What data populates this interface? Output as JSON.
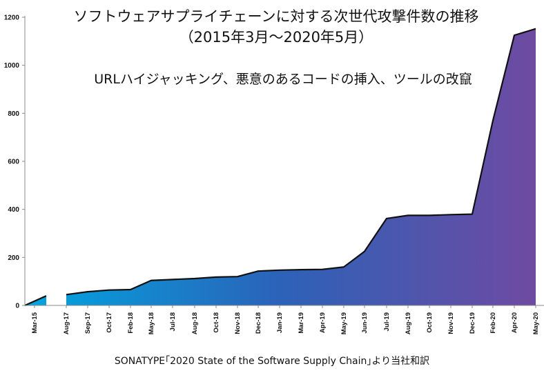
{
  "chart_data": {
    "type": "area",
    "title": "ソフトウェアサプライチェーンに対する次世代攻撃件数の推移",
    "subtitle": "（2015年3月～2020年5月）",
    "annotation": "URLハイジャッキング、悪意のあるコードの挿入、ツールの改竄",
    "source": "SONATYPE｢2020 State of the Software Supply Chain｣より当社和訳",
    "xlabel": "",
    "ylabel": "",
    "ylim": [
      0,
      1200
    ],
    "yticks": [
      0,
      200,
      400,
      600,
      800,
      1000,
      1200
    ],
    "grid": false,
    "colors": {
      "start": "#00a6e0",
      "mid": "#2c62b8",
      "end": "#6f4aa2",
      "line": "#111111"
    },
    "categories": [
      "Mar-15",
      "Aug-17",
      "Sep-17",
      "Oct-17",
      "Feb-18",
      "May-18",
      "Jul-18",
      "Aug-18",
      "Oct-18",
      "Nov-18",
      "Dec-18",
      "Jan-19",
      "Mar-19",
      "Apr-19",
      "May-19",
      "Jun-19",
      "Jul-19",
      "Aug-19",
      "Oct-19",
      "Nov-19",
      "Dec-19",
      "Feb-20",
      "Apr-20",
      "May-20"
    ],
    "segments": [
      {
        "categories": [
          "Mar-15"
        ],
        "values": [
          0,
          40
        ]
      },
      {
        "categories": [
          "Aug-17",
          "Sep-17",
          "Oct-17",
          "Feb-18",
          "May-18",
          "Jul-18",
          "Aug-18",
          "Oct-18",
          "Nov-18",
          "Dec-18",
          "Jan-19",
          "Mar-19",
          "Apr-19",
          "May-19",
          "Jun-19",
          "Jul-19",
          "Aug-19",
          "Oct-19",
          "Nov-19",
          "Dec-19",
          "Feb-20",
          "Apr-20",
          "May-20"
        ],
        "values": [
          45,
          57,
          64,
          66,
          104,
          108,
          112,
          118,
          120,
          143,
          147,
          149,
          150,
          160,
          225,
          362,
          375,
          375,
          378,
          380,
          770,
          1125,
          1152
        ]
      }
    ]
  }
}
